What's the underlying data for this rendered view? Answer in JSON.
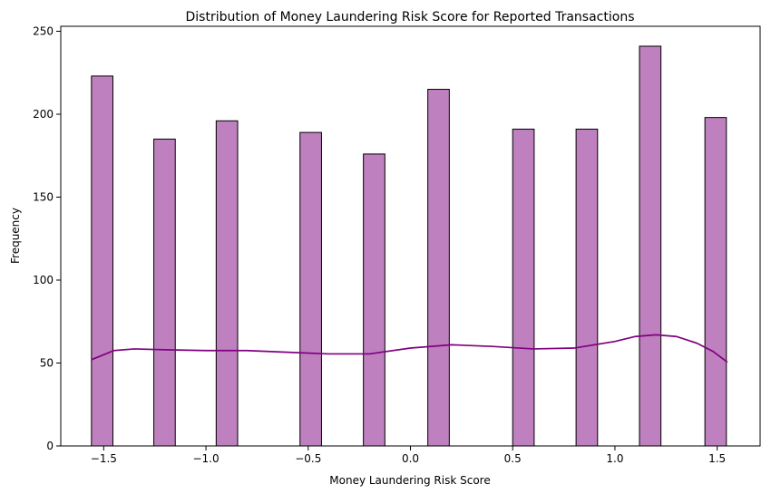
{
  "chart_data": {
    "type": "bar",
    "title": "Distribution of Money Laundering Risk Score for Reported Transactions",
    "xlabel": "Money Laundering Risk Score",
    "ylabel": "Frequency",
    "xlim": [
      -1.71,
      1.71
    ],
    "ylim": [
      0,
      253
    ],
    "x_ticks": [
      -1.5,
      -1.0,
      -0.5,
      0.0,
      0.5,
      1.0,
      1.5
    ],
    "x_tick_labels": [
      "−1.5",
      "−1.0",
      "−0.5",
      "0.0",
      "0.5",
      "1.0",
      "1.5"
    ],
    "y_ticks": [
      0,
      50,
      100,
      150,
      200,
      250
    ],
    "y_tick_labels": [
      "0",
      "50",
      "100",
      "150",
      "200",
      "250"
    ],
    "bin_width": 0.105,
    "bins": [
      {
        "x0": -1.56,
        "x1": -1.455,
        "count": 223
      },
      {
        "x0": -1.255,
        "x1": -1.15,
        "count": 185
      },
      {
        "x0": -0.95,
        "x1": -0.845,
        "count": 196
      },
      {
        "x0": -0.54,
        "x1": -0.435,
        "count": 189
      },
      {
        "x0": -0.23,
        "x1": -0.125,
        "count": 176
      },
      {
        "x0": 0.085,
        "x1": 0.19,
        "count": 215
      },
      {
        "x0": 0.5,
        "x1": 0.605,
        "count": 191
      },
      {
        "x0": 0.81,
        "x1": 0.915,
        "count": 191
      },
      {
        "x0": 1.12,
        "x1": 1.225,
        "count": 241
      },
      {
        "x0": 1.44,
        "x1": 1.545,
        "count": 198
      }
    ],
    "kde": {
      "x": [
        -1.56,
        -1.45,
        -1.35,
        -1.2,
        -1.0,
        -0.8,
        -0.6,
        -0.4,
        -0.2,
        0.0,
        0.2,
        0.4,
        0.6,
        0.8,
        1.0,
        1.1,
        1.2,
        1.3,
        1.4,
        1.48,
        1.55
      ],
      "y": [
        52,
        57.5,
        58.5,
        58,
        57.5,
        57.5,
        56.5,
        55.5,
        55.5,
        59,
        61,
        60,
        58.5,
        59,
        63,
        66,
        67,
        66,
        62,
        57,
        50.5
      ]
    },
    "bar_color": "#bf80bf",
    "bar_edge_color": "#000000",
    "kde_color": "#800080",
    "grid": false,
    "legend": "none"
  }
}
